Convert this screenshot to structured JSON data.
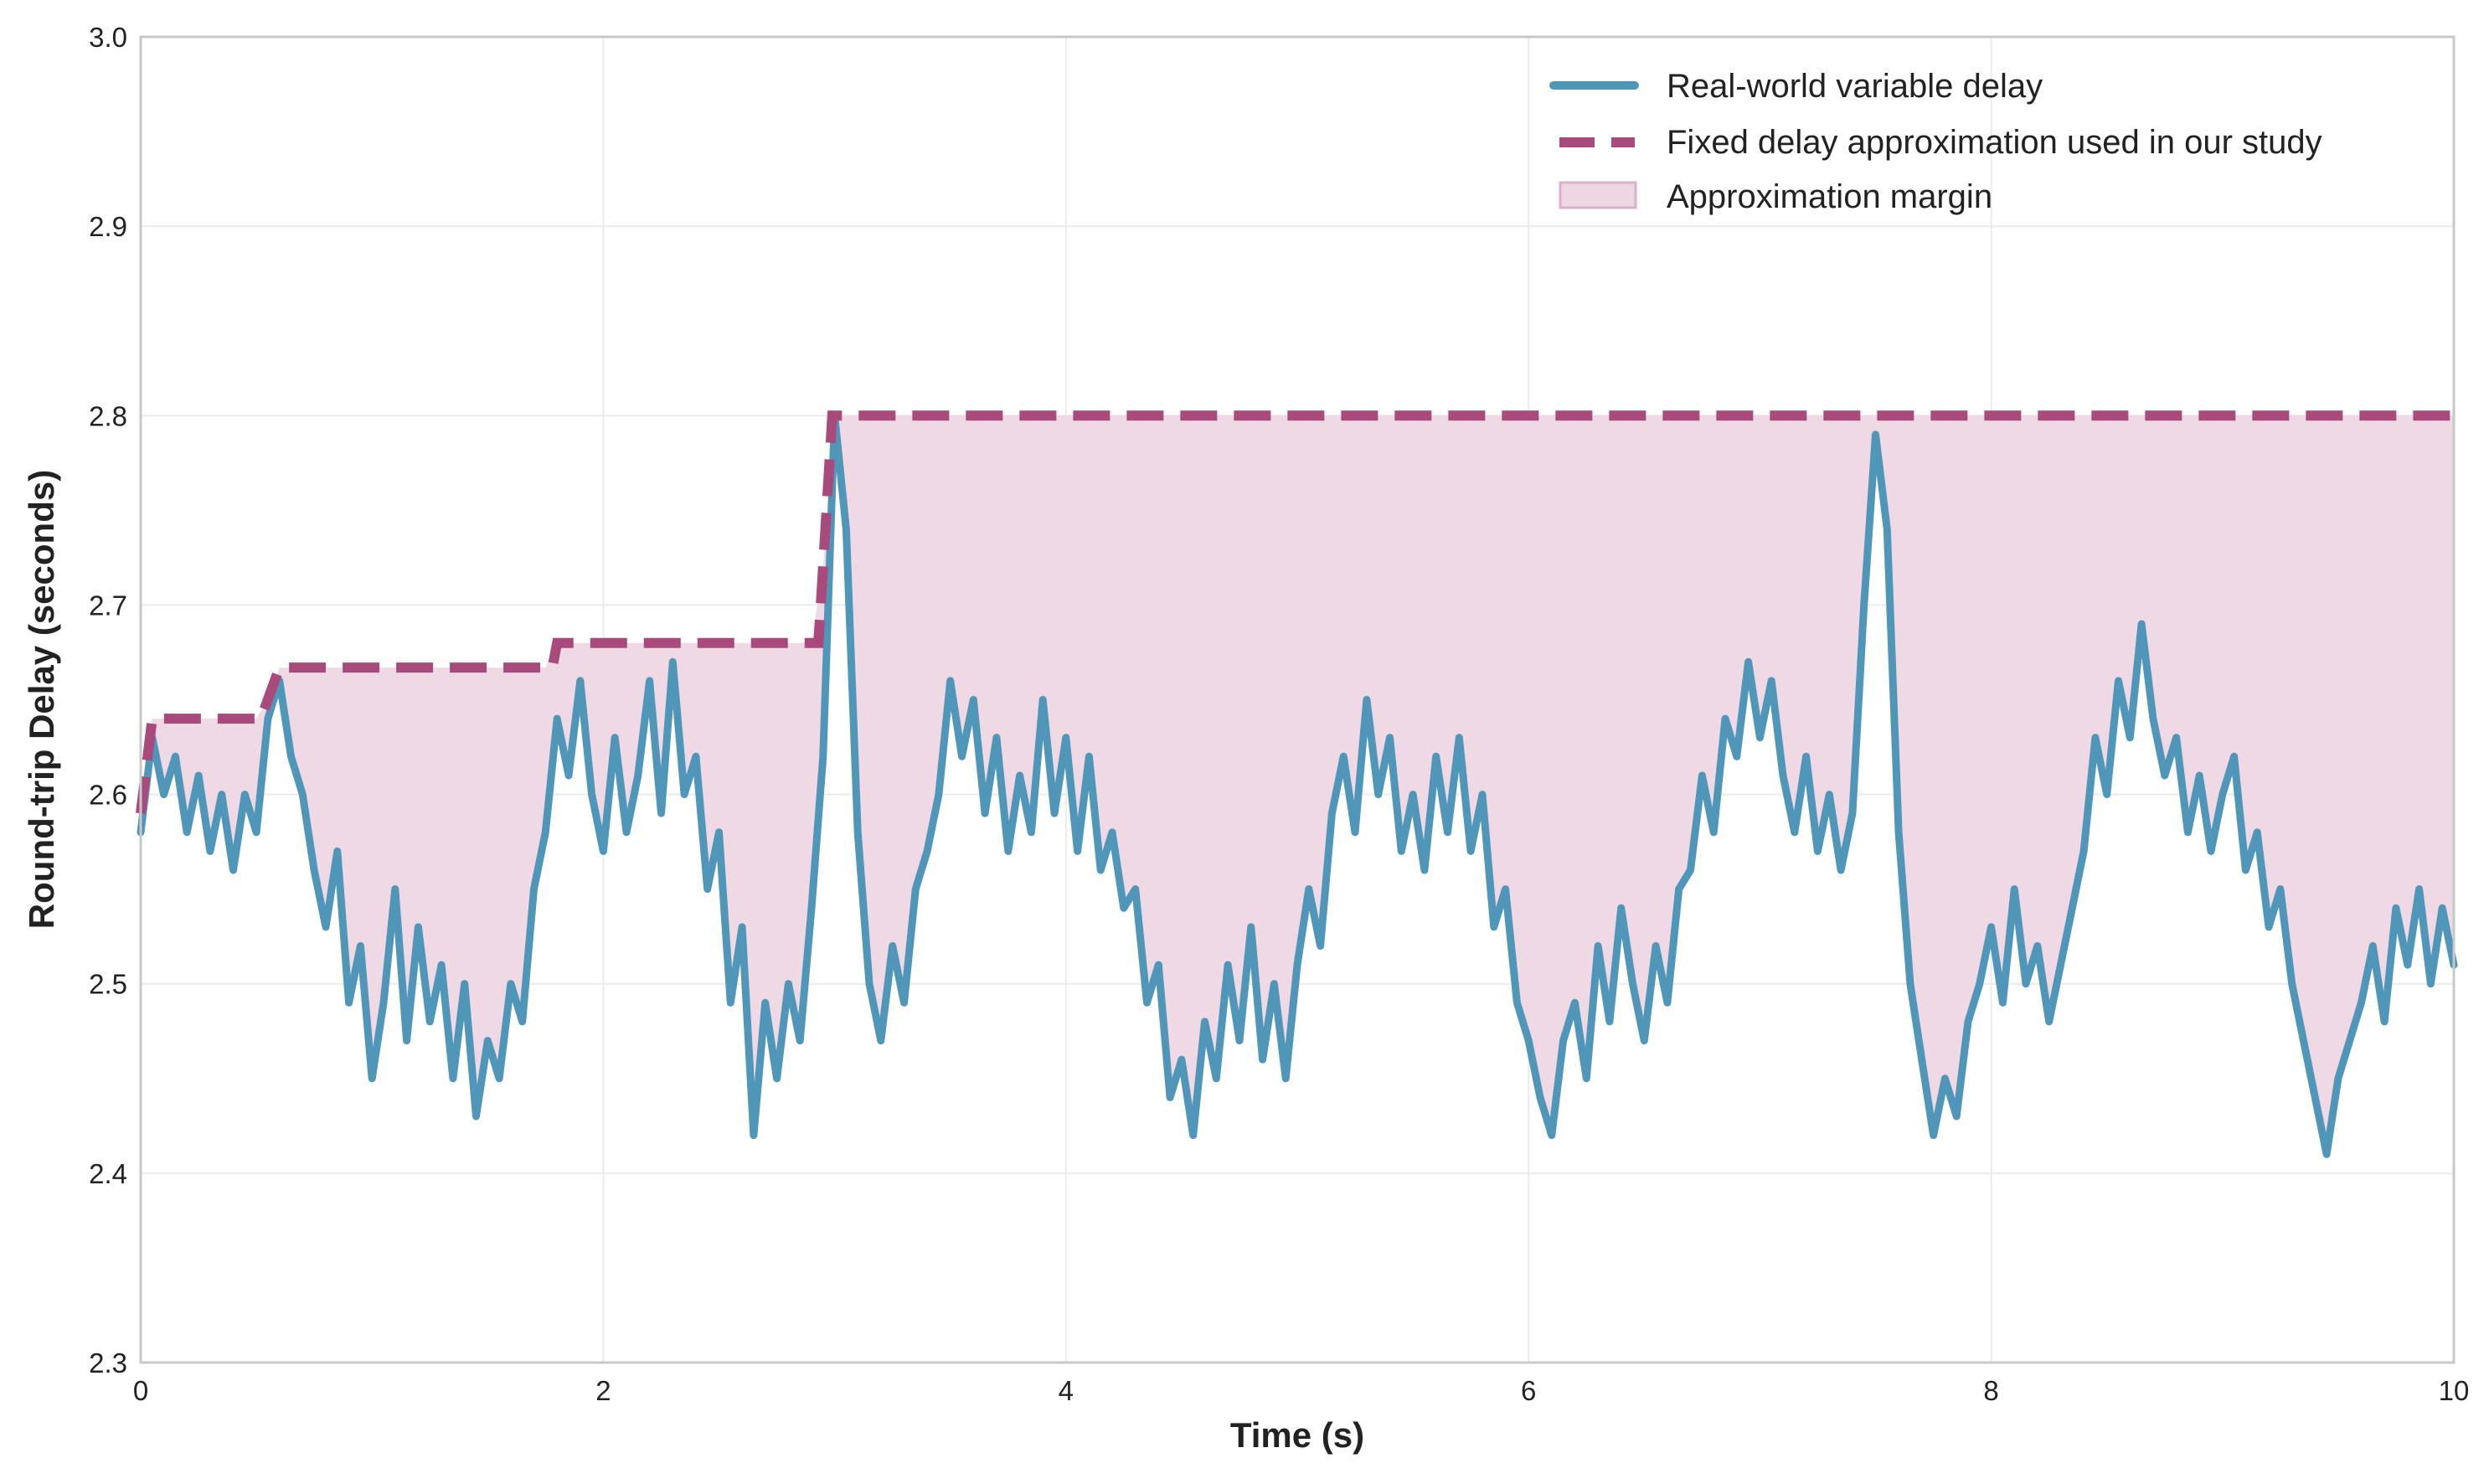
{
  "chart_data": {
    "type": "line",
    "title": "",
    "xlabel": "Time (s)",
    "ylabel": "Round-trip Delay (seconds)",
    "xlim": [
      0,
      10
    ],
    "ylim": [
      2.3,
      3.0
    ],
    "xticks": [
      "0",
      "2",
      "4",
      "6",
      "8",
      "10"
    ],
    "yticks": [
      "2.3",
      "2.4",
      "2.5",
      "2.6",
      "2.7",
      "2.8",
      "2.9",
      "3.0"
    ],
    "grid": true,
    "legend_position": "top-right",
    "series": [
      {
        "name": "Real-world variable delay",
        "color": "#4f96b8",
        "style": "solid",
        "x_range": [
          0,
          10
        ],
        "values": [
          2.58,
          2.63,
          2.6,
          2.62,
          2.58,
          2.61,
          2.57,
          2.6,
          2.56,
          2.6,
          2.58,
          2.64,
          2.66,
          2.62,
          2.6,
          2.56,
          2.53,
          2.57,
          2.49,
          2.52,
          2.45,
          2.49,
          2.55,
          2.47,
          2.53,
          2.48,
          2.51,
          2.45,
          2.5,
          2.43,
          2.47,
          2.45,
          2.5,
          2.48,
          2.55,
          2.58,
          2.64,
          2.61,
          2.66,
          2.6,
          2.57,
          2.63,
          2.58,
          2.61,
          2.66,
          2.59,
          2.67,
          2.6,
          2.62,
          2.55,
          2.58,
          2.49,
          2.53,
          2.42,
          2.49,
          2.45,
          2.5,
          2.47,
          2.54,
          2.62,
          2.8,
          2.74,
          2.58,
          2.5,
          2.47,
          2.52,
          2.49,
          2.55,
          2.57,
          2.6,
          2.66,
          2.62,
          2.65,
          2.59,
          2.63,
          2.57,
          2.61,
          2.58,
          2.65,
          2.59,
          2.63,
          2.57,
          2.62,
          2.56,
          2.58,
          2.54,
          2.55,
          2.49,
          2.51,
          2.44,
          2.46,
          2.42,
          2.48,
          2.45,
          2.51,
          2.47,
          2.53,
          2.46,
          2.5,
          2.45,
          2.51,
          2.55,
          2.52,
          2.59,
          2.62,
          2.58,
          2.65,
          2.6,
          2.63,
          2.57,
          2.6,
          2.56,
          2.62,
          2.58,
          2.63,
          2.57,
          2.6,
          2.53,
          2.55,
          2.49,
          2.47,
          2.44,
          2.42,
          2.47,
          2.49,
          2.45,
          2.52,
          2.48,
          2.54,
          2.5,
          2.47,
          2.52,
          2.49,
          2.55,
          2.56,
          2.61,
          2.58,
          2.64,
          2.62,
          2.67,
          2.63,
          2.66,
          2.61,
          2.58,
          2.62,
          2.57,
          2.6,
          2.56,
          2.59,
          2.7,
          2.79,
          2.74,
          2.58,
          2.5,
          2.46,
          2.42,
          2.45,
          2.43,
          2.48,
          2.5,
          2.53,
          2.49,
          2.55,
          2.5,
          2.52,
          2.48,
          2.51,
          2.54,
          2.57,
          2.63,
          2.6,
          2.66,
          2.63,
          2.69,
          2.64,
          2.61,
          2.63,
          2.58,
          2.61,
          2.57,
          2.6,
          2.62,
          2.56,
          2.58,
          2.53,
          2.55,
          2.5,
          2.47,
          2.44,
          2.41,
          2.45,
          2.47,
          2.49,
          2.52,
          2.48,
          2.54,
          2.51,
          2.55,
          2.5,
          2.54,
          2.51
        ]
      },
      {
        "name": "Fixed delay approximation used in our study",
        "color": "#a84a7c",
        "style": "dashed",
        "points": [
          [
            0,
            2.59
          ],
          [
            0.05,
            2.64
          ],
          [
            0.52,
            2.64
          ],
          [
            0.6,
            2.667
          ],
          [
            1.78,
            2.667
          ],
          [
            1.8,
            2.68
          ],
          [
            2.93,
            2.68
          ],
          [
            2.99,
            2.8
          ],
          [
            10,
            2.8
          ]
        ]
      }
    ],
    "fill": {
      "name": "Approximation margin",
      "color": "#eed7e3",
      "edge_color": "#dcb0c8"
    }
  }
}
